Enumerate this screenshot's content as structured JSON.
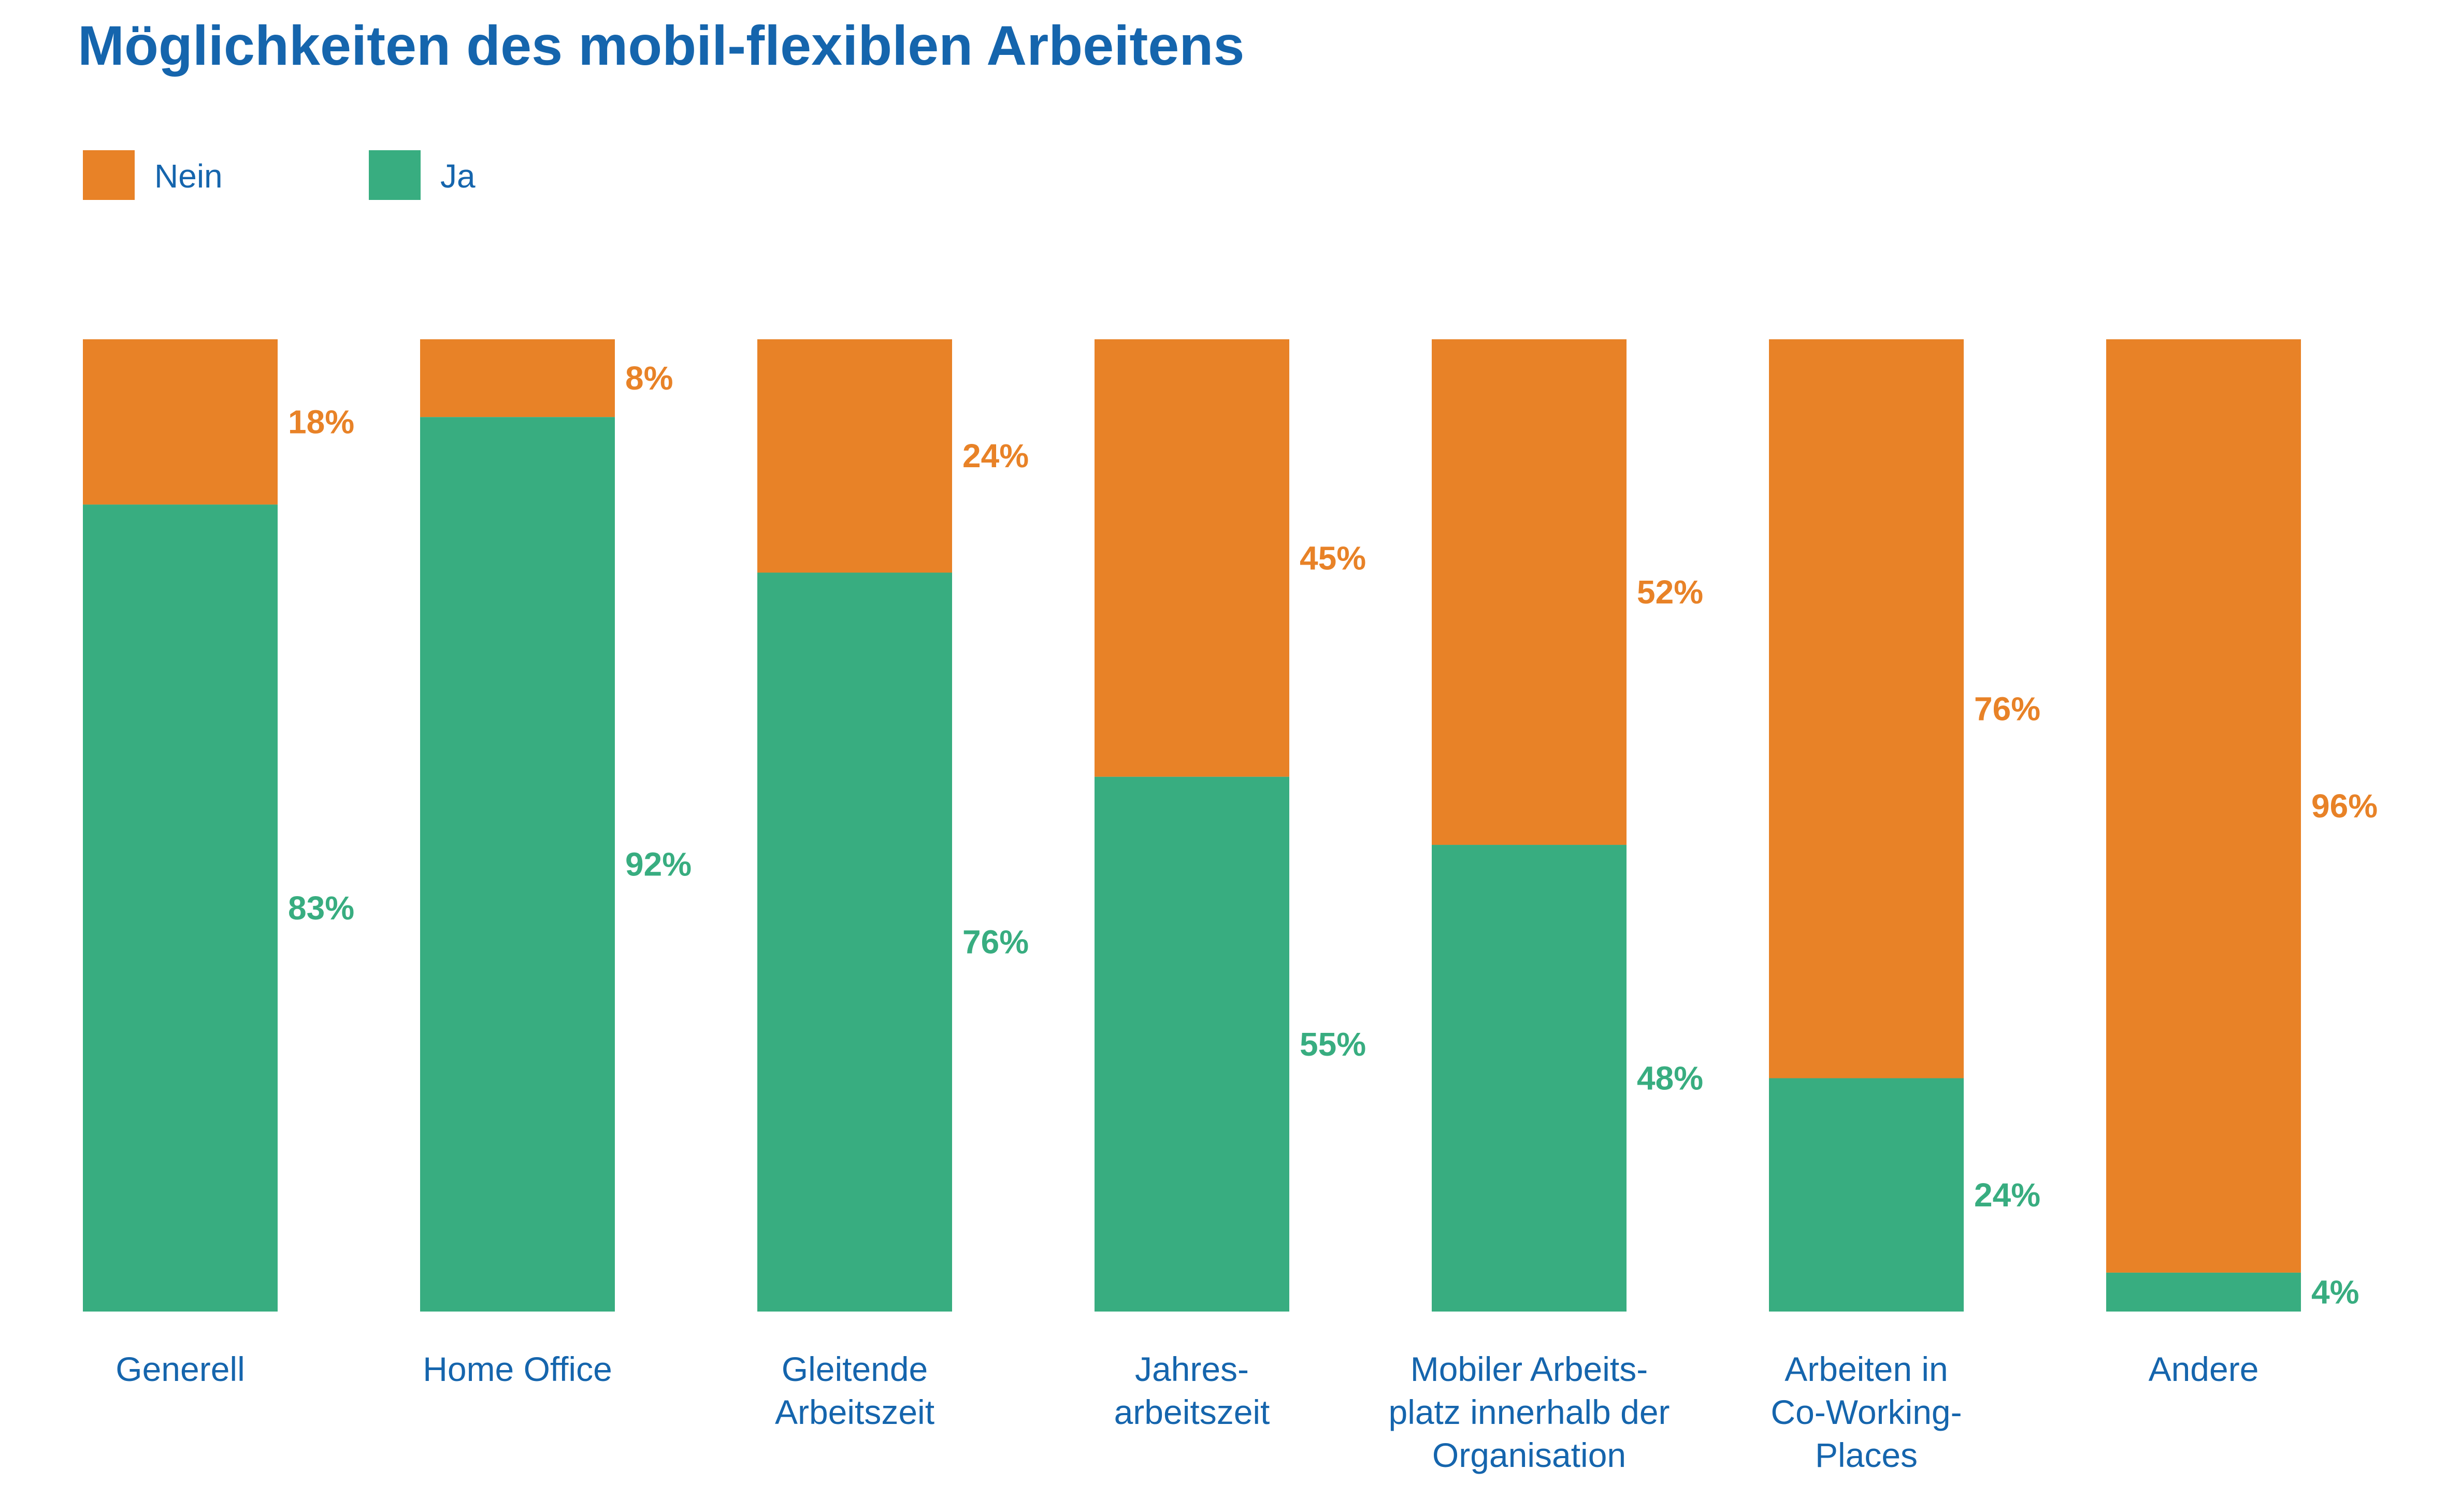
{
  "chart_data": {
    "type": "bar",
    "stacked": true,
    "title": "Möglichkeiten des mobil-flexiblen Arbeitens",
    "xlabel": "",
    "ylabel": "",
    "ylim": [
      0,
      100
    ],
    "grid": false,
    "legend_placement": "top-left",
    "categories": [
      [
        "Generell"
      ],
      [
        "Home Office"
      ],
      [
        "Gleitende",
        "Arbeitszeit"
      ],
      [
        "Jahres-",
        "arbeitszeit"
      ],
      [
        "Mobiler Arbeits-",
        "platz innerhalb der",
        "Organisation"
      ],
      [
        "Arbeiten in",
        "Co-Working-",
        "Places"
      ],
      [
        "Andere"
      ]
    ],
    "series": [
      {
        "name": "Ja",
        "color": "#38ad80",
        "values": [
          83,
          92,
          76,
          55,
          48,
          24,
          4
        ],
        "labels": [
          "83%",
          "92%",
          "76%",
          "55%",
          "48%",
          "24%",
          "4%"
        ]
      },
      {
        "name": "Nein",
        "color": "#e88227",
        "values": [
          18,
          8,
          24,
          45,
          52,
          76,
          96
        ],
        "labels": [
          "18%",
          "8%",
          "24%",
          "45%",
          "52%",
          "76%",
          "96%"
        ]
      }
    ],
    "legend": [
      {
        "name": "Nein",
        "color": "#e88227"
      },
      {
        "name": "Ja",
        "color": "#38ad80"
      }
    ],
    "colors": {
      "title": "#1565ad",
      "axis_text": "#1565ad"
    }
  }
}
